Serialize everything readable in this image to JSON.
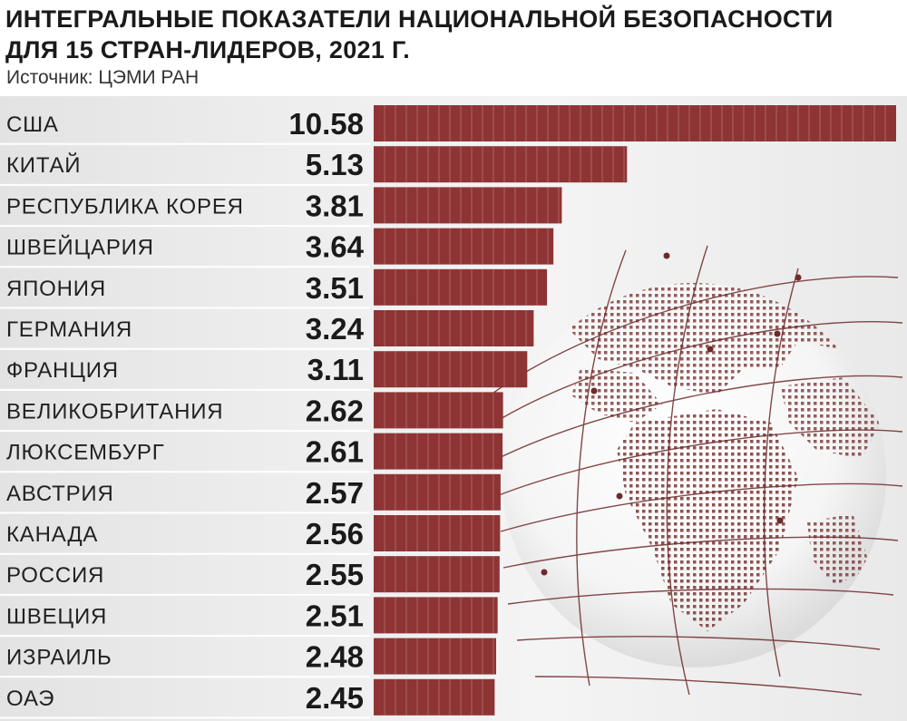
{
  "header": {
    "title_line1": "ИНТЕГРАЛЬНЫЕ ПОКАЗАТЕЛИ НАЦИОНАЛЬНОЙ БЕЗОПАСНОСТИ",
    "title_line2": "ДЛЯ 15 СТРАН-ЛИДЕРОВ, 2021 Г.",
    "source": "Источник: ЦЭМИ РАН"
  },
  "chart_data": {
    "type": "bar",
    "orientation": "horizontal",
    "title": "ИНТЕГРАЛЬНЫЕ ПОКАЗАТЕЛИ НАЦИОНАЛЬНОЙ БЕЗОПАСНОСТИ ДЛЯ 15 СТРАН-ЛИДЕРОВ, 2021 Г.",
    "categories": [
      "США",
      "КИТАЙ",
      "РЕСПУБЛИКА КОРЕЯ",
      "ШВЕЙЦАРИЯ",
      "ЯПОНИЯ",
      "ГЕРМАНИЯ",
      "ФРАНЦИЯ",
      "ВЕЛИКОБРИТАНИЯ",
      "ЛЮКСЕМБУРГ",
      "АВСТРИЯ",
      "КАНАДА",
      "РОССИЯ",
      "ШВЕЦИЯ",
      "ИЗРАИЛЬ",
      "ОАЭ"
    ],
    "values": [
      10.58,
      5.13,
      3.81,
      3.64,
      3.51,
      3.24,
      3.11,
      2.62,
      2.61,
      2.57,
      2.56,
      2.55,
      2.51,
      2.48,
      2.45
    ],
    "value_labels": [
      "10.58",
      "5.13",
      "3.81",
      "3.64",
      "3.51",
      "3.24",
      "3.11",
      "2.62",
      "2.61",
      "2.57",
      "2.56",
      "2.55",
      "2.51",
      "2.48",
      "2.45"
    ],
    "xlim": [
      0,
      10.58
    ],
    "bar_color": "#8e3434",
    "grid": false,
    "legend": "none"
  }
}
